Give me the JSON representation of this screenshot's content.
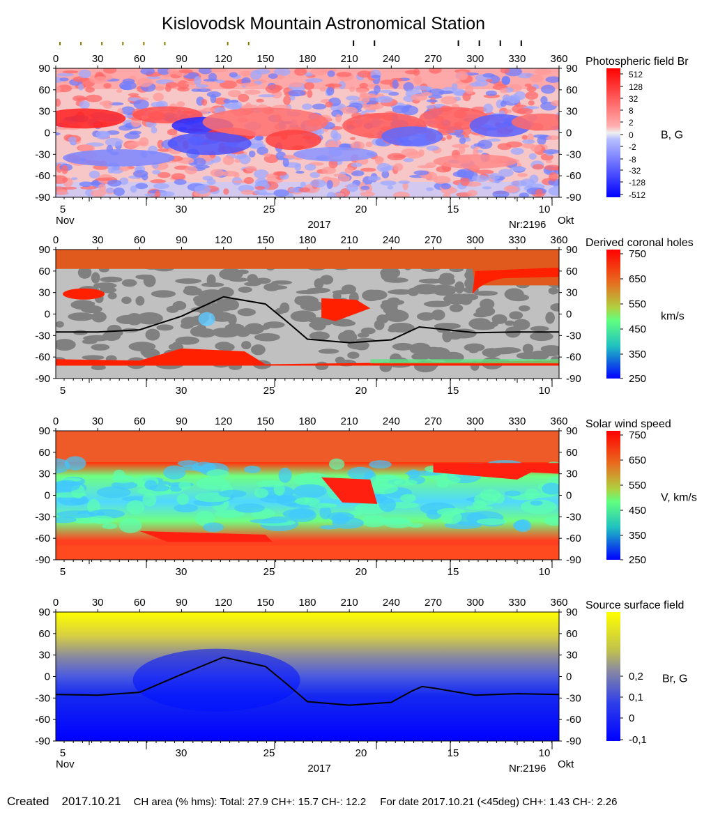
{
  "header": {
    "title": "Kislovodsk Mountain Astronomical Station"
  },
  "footer": {
    "created_label": "Created",
    "created_date": "2017.10.21",
    "ch_area": "CH area (% hms): Total: 27.9 CH+: 15.7    CH-: 12.2",
    "for_date": "For date 2017.10.21 (<45deg) CH+: 1.43    CH-: 2.26"
  },
  "chart_data": [
    {
      "type": "heatmap",
      "title": "Photospheric field Br",
      "unit_label": "B, G",
      "x_ticks": [
        0,
        30,
        60,
        90,
        120,
        150,
        180,
        210,
        240,
        270,
        300,
        330,
        360
      ],
      "y_ticks": [
        90,
        60,
        30,
        0,
        -30,
        -60,
        -90
      ],
      "date_ticks": [
        "5",
        "30",
        "25",
        "20",
        "15",
        "10"
      ],
      "date_left": "Nov",
      "date_right": "Okt",
      "year": "2017",
      "rotation": "Nr:2196",
      "colorbar_ticks": [
        "512",
        "128",
        "32",
        "8",
        "2",
        "0",
        "-2",
        "-8",
        "-32",
        "-128",
        "-512"
      ],
      "marker_ticks_olive": [
        0,
        15,
        30,
        45,
        60,
        75,
        120,
        135
      ],
      "marker_ticks_black": [
        210,
        225,
        285,
        300,
        315,
        330
      ]
    },
    {
      "type": "heatmap",
      "title": "Derived coronal holes",
      "unit_label": "km/s",
      "x_ticks": [
        0,
        30,
        60,
        90,
        120,
        150,
        180,
        210,
        240,
        270,
        300,
        330,
        360
      ],
      "y_ticks": [
        90,
        60,
        30,
        0,
        -30,
        -60,
        -90
      ],
      "date_ticks": [
        "5",
        "30",
        "25",
        "20",
        "15",
        "10"
      ],
      "colorbar_ticks": [
        "750",
        "650",
        "550",
        "450",
        "350",
        "250"
      ],
      "neutral_line": [
        [
          0,
          -25
        ],
        [
          30,
          -25
        ],
        [
          60,
          -22
        ],
        [
          90,
          -3
        ],
        [
          120,
          24
        ],
        [
          150,
          14
        ],
        [
          165,
          -10
        ],
        [
          180,
          -35
        ],
        [
          210,
          -40
        ],
        [
          240,
          -36
        ],
        [
          260,
          -18
        ],
        [
          270,
          -20
        ],
        [
          300,
          -26
        ],
        [
          330,
          -25
        ],
        [
          360,
          -25
        ]
      ]
    },
    {
      "type": "heatmap",
      "title": "Solar wind speed",
      "unit_label": "V, km/s",
      "x_ticks": [
        0,
        30,
        60,
        90,
        120,
        150,
        180,
        210,
        240,
        270,
        300,
        330,
        360
      ],
      "y_ticks": [
        90,
        60,
        30,
        0,
        -30,
        -60,
        -90
      ],
      "date_ticks": [
        "5",
        "30",
        "25",
        "20",
        "15",
        "10"
      ],
      "colorbar_ticks": [
        "750",
        "650",
        "550",
        "450",
        "350",
        "250"
      ]
    },
    {
      "type": "heatmap",
      "title": "Source surface field",
      "unit_label": "Br, G",
      "x_ticks": [
        0,
        30,
        60,
        90,
        120,
        150,
        180,
        210,
        240,
        270,
        300,
        330,
        360
      ],
      "y_ticks": [
        90,
        60,
        30,
        0,
        -30,
        -60,
        -90
      ],
      "date_ticks": [
        "5",
        "30",
        "25",
        "20",
        "15",
        "10"
      ],
      "date_left": "Nov",
      "date_right": "Okt",
      "year": "2017",
      "rotation": "Nr:2196",
      "colorbar_ticks": [
        "0,2",
        "0,1",
        "0",
        "-0,1"
      ],
      "neutral_line": [
        [
          0,
          -25
        ],
        [
          30,
          -26
        ],
        [
          60,
          -22
        ],
        [
          90,
          3
        ],
        [
          120,
          27
        ],
        [
          150,
          14
        ],
        [
          165,
          -10
        ],
        [
          180,
          -35
        ],
        [
          210,
          -40
        ],
        [
          240,
          -36
        ],
        [
          255,
          -20
        ],
        [
          262,
          -14
        ],
        [
          270,
          -16
        ],
        [
          300,
          -26
        ],
        [
          330,
          -24
        ],
        [
          360,
          -25
        ]
      ]
    }
  ],
  "colors": {
    "photo_pos": "#ff2020",
    "photo_pos_light": "#ff9a9a",
    "photo_neg": "#2828ff",
    "photo_neg_light": "#9ea8ff",
    "ch_red": "#ff2000",
    "ch_orange": "#e05a1e",
    "ch_gray_light": "#c0c0c0",
    "ch_gray_dark": "#808080",
    "wind_fast": "#ff2010",
    "wind_mid": "#66ff80",
    "wind_slow": "#2080ff",
    "ssf_yellow": "#ffff00",
    "ssf_blue": "#0000ff"
  }
}
